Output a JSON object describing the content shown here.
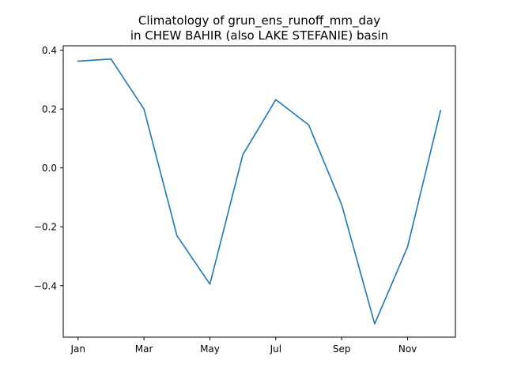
{
  "chart_data": {
    "type": "line",
    "title_line1": "Climatology of grun_ens_runoff_mm_day",
    "title_line2": "in CHEW BAHIR (also LAKE STEFANIE) basin",
    "xlabel": "",
    "ylabel": "",
    "x": [
      1,
      2,
      3,
      4,
      5,
      6,
      7,
      8,
      9,
      10,
      11,
      12
    ],
    "xticks": [
      {
        "value": 1,
        "label": "Jan"
      },
      {
        "value": 3,
        "label": "Mar"
      },
      {
        "value": 5,
        "label": "May"
      },
      {
        "value": 7,
        "label": "Jul"
      },
      {
        "value": 9,
        "label": "Sep"
      },
      {
        "value": 11,
        "label": "Nov"
      }
    ],
    "yticks": [
      {
        "value": 0.4,
        "label": "0.4"
      },
      {
        "value": 0.2,
        "label": "0.2"
      },
      {
        "value": 0.0,
        "label": "0.0"
      },
      {
        "value": -0.2,
        "label": "−0.2"
      },
      {
        "value": -0.4,
        "label": "−0.4"
      }
    ],
    "xlim": [
      0.55,
      12.45
    ],
    "ylim": [
      -0.575,
      0.415
    ],
    "grid": false,
    "series": [
      {
        "values": [
          0.363,
          0.37,
          0.2,
          -0.23,
          -0.395,
          0.045,
          0.232,
          0.146,
          -0.125,
          -0.53,
          -0.268,
          0.195
        ],
        "color": "#1f77b4"
      }
    ]
  }
}
